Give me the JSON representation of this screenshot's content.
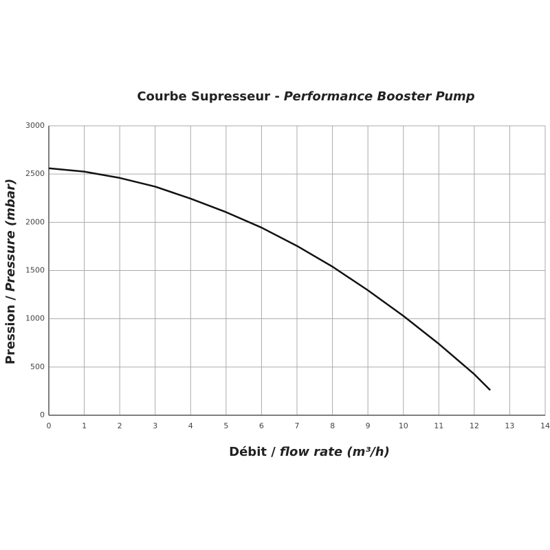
{
  "chart_data": {
    "type": "line",
    "title": [
      "Courbe Supresseur -",
      "Performance Booster Pump"
    ],
    "x_label": [
      "Débit /",
      "flow rate (m³/h)"
    ],
    "y_label": [
      "Pression /",
      "Pressure (mbar)"
    ],
    "x": [
      0,
      1,
      2,
      3,
      4,
      5,
      6,
      7,
      8,
      9,
      10,
      11,
      12,
      12.45
    ],
    "series": [
      {
        "color": "#111111",
        "values": [
          2560,
          2525,
          2460,
          2370,
          2245,
          2105,
          1945,
          1755,
          1540,
          1295,
          1030,
          740,
          425,
          260
        ]
      }
    ],
    "xlim": [
      0,
      14
    ],
    "xticks": [
      0,
      1,
      2,
      3,
      4,
      5,
      6,
      7,
      8,
      9,
      10,
      11,
      12,
      13,
      14
    ],
    "ylim": [
      0,
      3000
    ],
    "yticks": [
      0,
      500,
      1000,
      1500,
      2000,
      2500,
      3000
    ],
    "grid": true
  }
}
